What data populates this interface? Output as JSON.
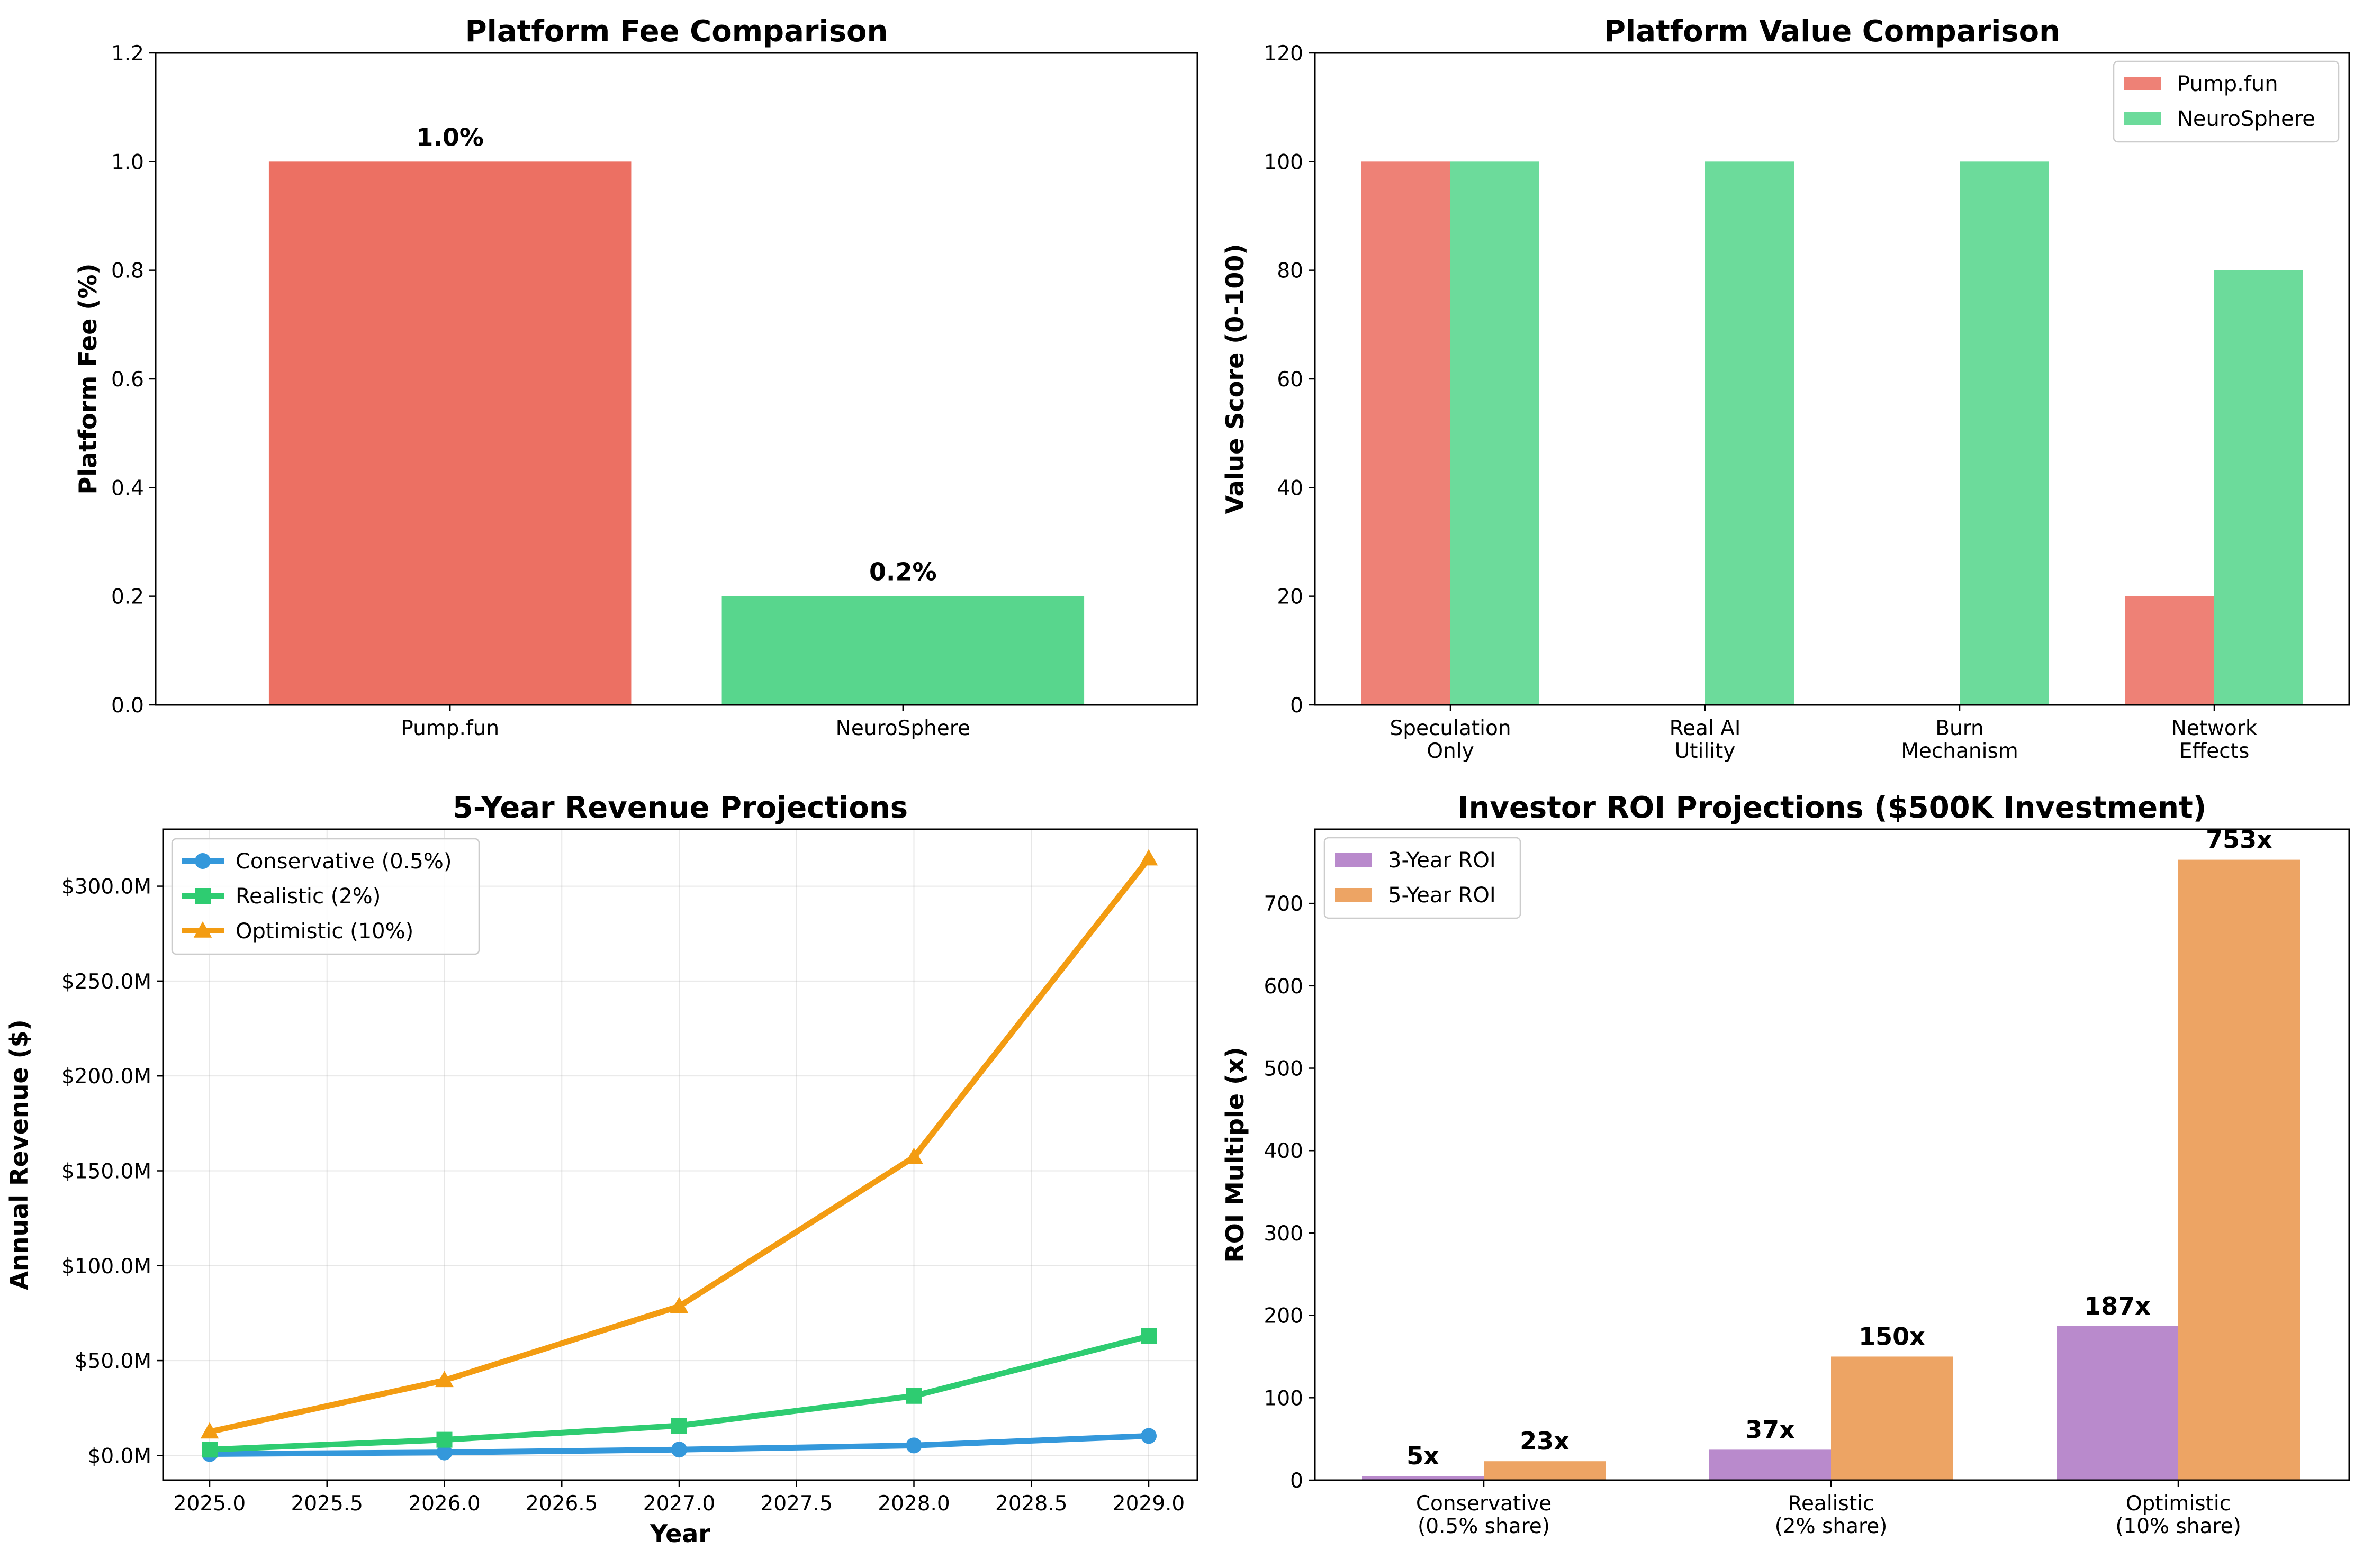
{
  "chart_data": [
    {
      "type": "bar",
      "title": "Platform Fee Comparison",
      "xlabel": "",
      "ylabel": "Platform Fee (%)",
      "categories": [
        "Pump.fun",
        "NeuroSphere"
      ],
      "values": [
        1.0,
        0.2
      ],
      "value_labels": [
        "1.0%",
        "0.2%"
      ],
      "colors": [
        "#e74c3c",
        "#2ecc71"
      ],
      "ylim": [
        0,
        1.2
      ],
      "yticks": [
        "0.0",
        "0.2",
        "0.4",
        "0.6",
        "0.8",
        "1.0",
        "1.2"
      ],
      "grid": false
    },
    {
      "type": "bar",
      "title": "Platform Value Comparison",
      "xlabel": "",
      "ylabel": "Value Score (0-100)",
      "categories": [
        [
          "Speculation",
          "Only"
        ],
        [
          "Real AI",
          "Utility"
        ],
        [
          "Burn",
          "Mechanism"
        ],
        [
          "Network",
          "Effects"
        ]
      ],
      "series": [
        {
          "name": "Pump.fun",
          "values": [
            100,
            0,
            0,
            20
          ],
          "color": "#e74c3c"
        },
        {
          "name": "NeuroSphere",
          "values": [
            100,
            100,
            100,
            80
          ],
          "color": "#2ecc71"
        }
      ],
      "ylim": [
        0,
        120
      ],
      "yticks": [
        "0",
        "20",
        "40",
        "60",
        "80",
        "100",
        "120"
      ],
      "legend": "top-right",
      "grid": false
    },
    {
      "type": "line",
      "title": "5-Year Revenue Projections",
      "xlabel": "Year",
      "ylabel": "Annual Revenue ($)",
      "x": [
        2025,
        2026,
        2027,
        2028,
        2029
      ],
      "xticks": [
        "2025.0",
        "2025.5",
        "2026.0",
        "2026.5",
        "2027.0",
        "2027.5",
        "2028.0",
        "2028.5",
        "2029.0"
      ],
      "series": [
        {
          "name": "Conservative (0.5%)",
          "values": [
            0.8,
            1.6,
            3.1,
            5.3,
            10.3
          ],
          "color": "#3498db",
          "marker": "circle"
        },
        {
          "name": "Realistic (2%)",
          "values": [
            3.1,
            8.3,
            15.7,
            31.4,
            62.9
          ],
          "color": "#2ecc71",
          "marker": "square"
        },
        {
          "name": "Optimistic (10%)",
          "values": [
            12.5,
            39.6,
            78.6,
            157.2,
            314.5
          ],
          "color": "#f39c12",
          "marker": "triangle"
        }
      ],
      "ylim": [
        -13,
        330
      ],
      "yticks": [
        "$0.0M",
        "$50.0M",
        "$100.0M",
        "$150.0M",
        "$200.0M",
        "$250.0M",
        "$300.0M"
      ],
      "legend": "top-left",
      "grid": true
    },
    {
      "type": "bar",
      "title": "Investor ROI Projections ($500K Investment)",
      "xlabel": "",
      "ylabel": "ROI Multiple (x)",
      "categories": [
        [
          "Conservative",
          "(0.5% share)"
        ],
        [
          "Realistic",
          "(2% share)"
        ],
        [
          "Optimistic",
          "(10% share)"
        ]
      ],
      "series": [
        {
          "name": "3-Year ROI",
          "values": [
            5,
            37,
            187
          ],
          "labels": [
            "5x",
            "37x",
            "187x"
          ],
          "color": "#9b59b6"
        },
        {
          "name": "5-Year ROI",
          "values": [
            23,
            150,
            753
          ],
          "labels": [
            "23x",
            "150x",
            "753x"
          ],
          "color": "#e67e22"
        }
      ],
      "ylim": [
        0,
        790
      ],
      "yticks": [
        "0",
        "100",
        "200",
        "300",
        "400",
        "500",
        "600",
        "700"
      ],
      "legend": "top-left",
      "grid": false
    }
  ]
}
